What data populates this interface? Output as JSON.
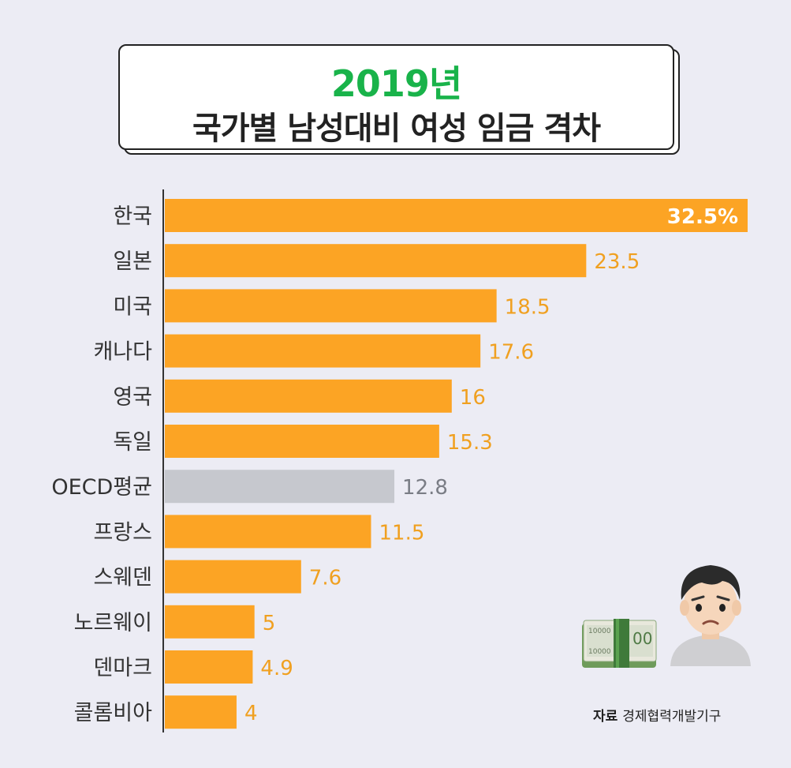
{
  "title": {
    "year": "2019년",
    "main": "국가별 남성대비 여성 임금 격차"
  },
  "source": {
    "label": "자료",
    "text": "경제협력개발기구"
  },
  "colors": {
    "bar": "#fca424",
    "highlight_bar": "#c6c8ce",
    "value_text": "#f0a020",
    "highlight_value_text": "#7a7d85",
    "title_green": "#19b34a"
  },
  "icons": [
    "money-stack-icon",
    "worried-face-icon"
  ],
  "chart_data": {
    "type": "bar",
    "orientation": "horizontal",
    "title": "2019년 국가별 남성대비 여성 임금 격차",
    "categories": [
      "한국",
      "일본",
      "미국",
      "캐나다",
      "영국",
      "독일",
      "OECD평균",
      "프랑스",
      "스웨덴",
      "노르웨이",
      "덴마크",
      "콜롬비아"
    ],
    "values": [
      32.5,
      23.5,
      18.5,
      17.6,
      16,
      15.3,
      12.8,
      11.5,
      7.6,
      5,
      4.9,
      4
    ],
    "value_labels": [
      "32.5%",
      "23.5",
      "18.5",
      "17.6",
      "16",
      "15.3",
      "12.8",
      "11.5",
      "7.6",
      "5",
      "4.9",
      "4"
    ],
    "highlight_category": "OECD평균",
    "xlim": [
      0,
      32.5
    ],
    "grid": false,
    "legend": "none"
  }
}
